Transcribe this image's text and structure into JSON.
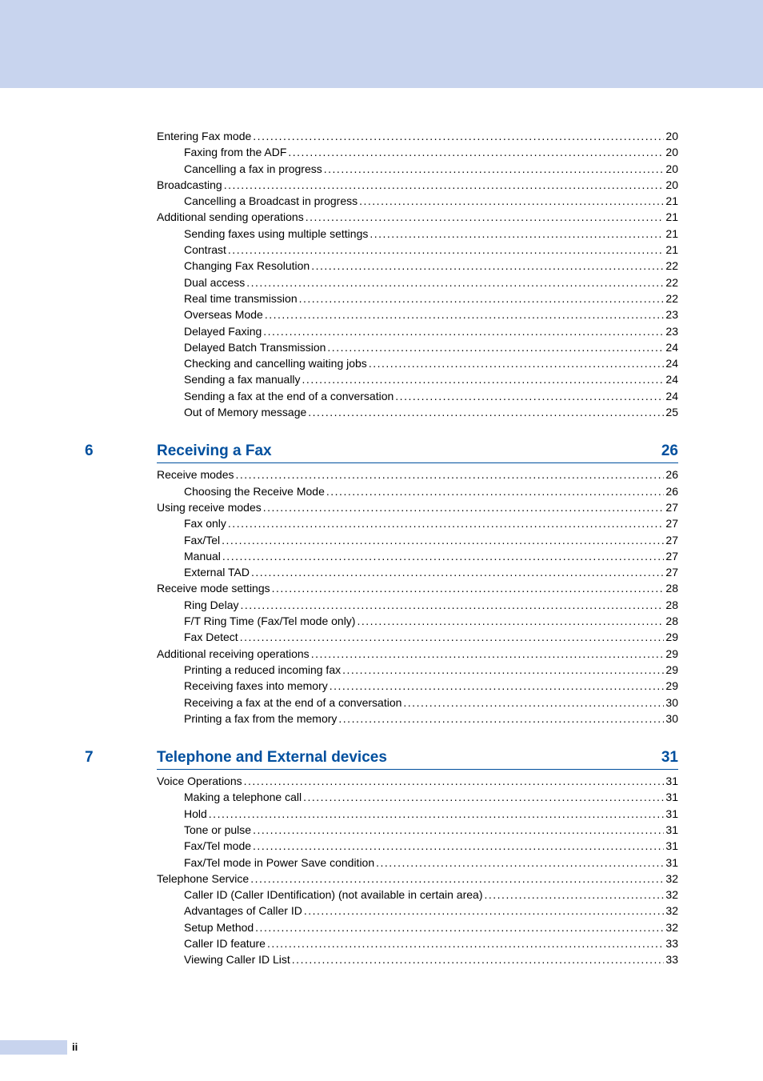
{
  "colors": {
    "headerBand": "#c8d4ee",
    "sectionAccent": "#004f9e",
    "sectionRule": "#004f9e",
    "text": "#000000",
    "footerBar": "#c8d4ee"
  },
  "typography": {
    "bodyFontSizePt": 10,
    "sectionTitleFontSizePt": 14,
    "lineHeight": 1.45
  },
  "section5": {
    "entries": [
      {
        "label": "Entering Fax mode",
        "page": "20",
        "level": 0
      },
      {
        "label": "Faxing from the ADF ",
        "page": "20",
        "level": 1
      },
      {
        "label": "Cancelling a fax in progress",
        "page": "20",
        "level": 1
      },
      {
        "label": "Broadcasting",
        "page": "20",
        "level": 0
      },
      {
        "label": "Cancelling a Broadcast in progress",
        "page": "21",
        "level": 1
      },
      {
        "label": "Additional sending operations",
        "page": "21",
        "level": 0
      },
      {
        "label": "Sending faxes using multiple settings",
        "page": "21",
        "level": 1
      },
      {
        "label": "Contrast",
        "page": "21",
        "level": 1
      },
      {
        "label": "Changing Fax Resolution",
        "page": "22",
        "level": 1
      },
      {
        "label": "Dual access",
        "page": "22",
        "level": 1
      },
      {
        "label": "Real time transmission",
        "page": "22",
        "level": 1
      },
      {
        "label": "Overseas Mode",
        "page": "23",
        "level": 1
      },
      {
        "label": "Delayed Faxing",
        "page": "23",
        "level": 1
      },
      {
        "label": "Delayed Batch Transmission",
        "page": "24",
        "level": 1
      },
      {
        "label": "Checking and cancelling waiting jobs",
        "page": "24",
        "level": 1
      },
      {
        "label": "Sending a fax manually",
        "page": "24",
        "level": 1
      },
      {
        "label": "Sending a fax at the end of a conversation",
        "page": "24",
        "level": 1
      },
      {
        "label": "Out of Memory message",
        "page": "25",
        "level": 1
      }
    ]
  },
  "section6": {
    "num": "6",
    "title": "Receiving a Fax",
    "page": "26",
    "entries": [
      {
        "label": "Receive modes",
        "page": "26",
        "level": 0
      },
      {
        "label": "Choosing the Receive Mode",
        "page": "26",
        "level": 1
      },
      {
        "label": "Using receive modes",
        "page": "27",
        "level": 0
      },
      {
        "label": "Fax only",
        "page": "27",
        "level": 1
      },
      {
        "label": "Fax/Tel",
        "page": "27",
        "level": 1
      },
      {
        "label": "Manual",
        "page": "27",
        "level": 1
      },
      {
        "label": "External TAD",
        "page": "27",
        "level": 1
      },
      {
        "label": "Receive mode settings",
        "page": "28",
        "level": 0
      },
      {
        "label": "Ring Delay",
        "page": "28",
        "level": 1
      },
      {
        "label": "F/T Ring Time (Fax/Tel mode only)",
        "page": "28",
        "level": 1
      },
      {
        "label": "Fax Detect",
        "page": "29",
        "level": 1
      },
      {
        "label": "Additional receiving operations",
        "page": "29",
        "level": 0
      },
      {
        "label": "Printing a reduced incoming fax",
        "page": "29",
        "level": 1
      },
      {
        "label": "Receiving faxes into memory",
        "page": "29",
        "level": 1
      },
      {
        "label": "Receiving a fax at the end of a conversation",
        "page": "30",
        "level": 1
      },
      {
        "label": "Printing a fax from the memory",
        "page": "30",
        "level": 1
      }
    ]
  },
  "section7": {
    "num": "7",
    "title": "Telephone and External devices",
    "page": "31",
    "entries": [
      {
        "label": "Voice Operations ",
        "page": "31",
        "level": 0
      },
      {
        "label": "Making a telephone call",
        "page": "31",
        "level": 1
      },
      {
        "label": "Hold",
        "page": "31",
        "level": 1
      },
      {
        "label": "Tone or pulse",
        "page": "31",
        "level": 1
      },
      {
        "label": "Fax/Tel mode",
        "page": "31",
        "level": 1
      },
      {
        "label": "Fax/Tel mode in Power Save condition",
        "page": "31",
        "level": 1
      },
      {
        "label": "Telephone Service",
        "page": "32",
        "level": 0
      },
      {
        "label": "Caller ID (Caller IDentification) (not available in certain area)",
        "page": "32",
        "level": 1
      },
      {
        "label": "Advantages of Caller ID",
        "page": "32",
        "level": 1
      },
      {
        "label": "Setup Method",
        "page": "32",
        "level": 1
      },
      {
        "label": "Caller ID feature",
        "page": "33",
        "level": 1
      },
      {
        "label": "Viewing Caller ID List",
        "page": "33",
        "level": 1
      }
    ]
  },
  "footer": {
    "page": "ii"
  }
}
